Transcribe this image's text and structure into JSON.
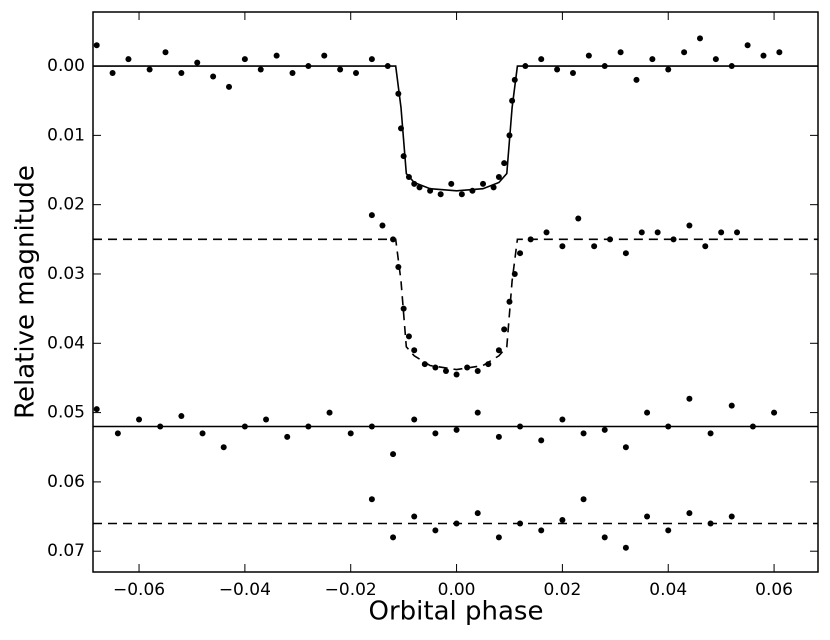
{
  "chart_data": {
    "type": "scatter",
    "xlabel": "Orbital phase",
    "ylabel": "Relative magnitude",
    "xlim": [
      -0.0687,
      0.0683
    ],
    "ylim": [
      -0.0078,
      0.073
    ],
    "y_inverted": true,
    "xticks": [
      {
        "value": -0.06,
        "label": "−0.06"
      },
      {
        "value": -0.04,
        "label": "−0.04"
      },
      {
        "value": -0.02,
        "label": "−0.02"
      },
      {
        "value": 0,
        "label": "0.00"
      },
      {
        "value": 0.02,
        "label": "0.02"
      },
      {
        "value": 0.04,
        "label": "0.04"
      },
      {
        "value": 0.06,
        "label": "0.06"
      }
    ],
    "yticks": [
      {
        "value": 0,
        "label": "0.00"
      },
      {
        "value": 0.01,
        "label": "0.01"
      },
      {
        "value": 0.02,
        "label": "0.02"
      },
      {
        "value": 0.03,
        "label": "0.03"
      },
      {
        "value": 0.04,
        "label": "0.04"
      },
      {
        "value": 0.05,
        "label": "0.05"
      },
      {
        "value": 0.06,
        "label": "0.06"
      },
      {
        "value": 0.07,
        "label": "0.07"
      }
    ],
    "series": [
      {
        "mode": "markers",
        "color": "#000000",
        "x": [
          -0.068,
          -0.065,
          -0.062,
          -0.058,
          -0.055,
          -0.052,
          -0.049,
          -0.046,
          -0.043,
          -0.04,
          -0.037,
          -0.034,
          -0.031,
          -0.028,
          -0.025,
          -0.022,
          -0.019,
          -0.016,
          -0.013,
          -0.011,
          -0.0105,
          -0.01,
          -0.009,
          -0.008,
          -0.007,
          -0.005,
          -0.003,
          -0.001,
          0.001,
          0.003,
          0.005,
          0.007,
          0.008,
          0.009,
          0.01,
          0.0105,
          0.011,
          0.013,
          0.016,
          0.019,
          0.022,
          0.025,
          0.028,
          0.031,
          0.034,
          0.037,
          0.04,
          0.043,
          0.046,
          0.049,
          0.052,
          0.055,
          0.058,
          0.061
        ],
        "values": [
          -0.003,
          0.001,
          -0.001,
          0.0005,
          -0.002,
          0.001,
          -0.0005,
          0.0015,
          0.003,
          -0.001,
          0.0005,
          -0.0015,
          0.001,
          0.0,
          -0.0015,
          0.0005,
          0.001,
          -0.001,
          0.0,
          0.004,
          0.009,
          0.013,
          0.016,
          0.017,
          0.0175,
          0.018,
          0.0185,
          0.017,
          0.0185,
          0.018,
          0.017,
          0.0175,
          0.016,
          0.014,
          0.01,
          0.005,
          0.002,
          0.0,
          -0.001,
          0.0005,
          0.001,
          -0.0015,
          0.0,
          -0.002,
          0.002,
          -0.001,
          0.0005,
          -0.002,
          -0.004,
          -0.001,
          0.0,
          -0.003,
          -0.0015,
          -0.002
        ]
      },
      {
        "mode": "line",
        "dash": false,
        "color": "#000000",
        "x": [
          -0.0687,
          -0.0115,
          -0.0105,
          -0.0095,
          -0.008,
          -0.005,
          0,
          0.005,
          0.008,
          0.0095,
          0.0105,
          0.0115,
          0.0683
        ],
        "values": [
          0,
          0,
          0.006,
          0.0155,
          0.0168,
          0.0177,
          0.018,
          0.0177,
          0.0168,
          0.0155,
          0.006,
          0,
          0
        ]
      },
      {
        "mode": "markers",
        "color": "#000000",
        "x": [
          -0.016,
          -0.014,
          -0.012,
          -0.011,
          -0.01,
          -0.009,
          -0.008,
          -0.006,
          -0.004,
          -0.002,
          0.0,
          0.002,
          0.004,
          0.006,
          0.008,
          0.009,
          0.01,
          0.011,
          0.012,
          0.014,
          0.017,
          0.02,
          0.023,
          0.026,
          0.029,
          0.032,
          0.035,
          0.038,
          0.041,
          0.044,
          0.047,
          0.05,
          0.053
        ],
        "values": [
          0.0215,
          0.023,
          0.025,
          0.029,
          0.035,
          0.039,
          0.041,
          0.043,
          0.0435,
          0.044,
          0.0445,
          0.0435,
          0.044,
          0.043,
          0.041,
          0.038,
          0.034,
          0.03,
          0.027,
          0.025,
          0.024,
          0.026,
          0.022,
          0.026,
          0.025,
          0.027,
          0.024,
          0.024,
          0.025,
          0.023,
          0.026,
          0.024,
          0.024
        ]
      },
      {
        "mode": "line",
        "dash": true,
        "color": "#000000",
        "x": [
          -0.0687,
          -0.0115,
          -0.0105,
          -0.0095,
          -0.008,
          -0.005,
          0,
          0.005,
          0.008,
          0.0095,
          0.0105,
          0.0115,
          0.0683
        ],
        "values": [
          0.025,
          0.025,
          0.031,
          0.0405,
          0.0418,
          0.0432,
          0.0438,
          0.0432,
          0.0418,
          0.0405,
          0.031,
          0.025,
          0.025
        ]
      },
      {
        "mode": "markers",
        "color": "#000000",
        "x": [
          -0.068,
          -0.064,
          -0.06,
          -0.056,
          -0.052,
          -0.048,
          -0.044,
          -0.04,
          -0.036,
          -0.032,
          -0.028,
          -0.024,
          -0.02,
          -0.016,
          -0.012,
          -0.008,
          -0.004,
          0.0,
          0.004,
          0.008,
          0.012,
          0.016,
          0.02,
          0.024,
          0.028,
          0.032,
          0.036,
          0.04,
          0.044,
          0.048,
          0.052,
          0.056,
          0.06
        ],
        "values": [
          0.0495,
          0.053,
          0.051,
          0.052,
          0.0505,
          0.053,
          0.055,
          0.052,
          0.051,
          0.0535,
          0.052,
          0.05,
          0.053,
          0.052,
          0.056,
          0.051,
          0.053,
          0.0525,
          0.05,
          0.0535,
          0.052,
          0.054,
          0.051,
          0.053,
          0.0525,
          0.055,
          0.05,
          0.052,
          0.048,
          0.053,
          0.049,
          0.052,
          0.05
        ]
      },
      {
        "mode": "line",
        "dash": false,
        "color": "#000000",
        "x": [
          -0.0687,
          0.0683
        ],
        "values": [
          0.052,
          0.052
        ]
      },
      {
        "mode": "markers",
        "color": "#000000",
        "x": [
          -0.016,
          -0.012,
          -0.008,
          -0.004,
          0.0,
          0.004,
          0.008,
          0.012,
          0.016,
          0.02,
          0.024,
          0.028,
          0.032,
          0.036,
          0.04,
          0.044,
          0.048,
          0.052
        ],
        "values": [
          0.0625,
          0.068,
          0.065,
          0.067,
          0.066,
          0.0645,
          0.068,
          0.066,
          0.067,
          0.0655,
          0.0625,
          0.068,
          0.0695,
          0.065,
          0.067,
          0.0645,
          0.066,
          0.065
        ]
      },
      {
        "mode": "line",
        "dash": true,
        "color": "#000000",
        "x": [
          -0.0687,
          0.0683
        ],
        "values": [
          0.066,
          0.066
        ]
      }
    ]
  }
}
